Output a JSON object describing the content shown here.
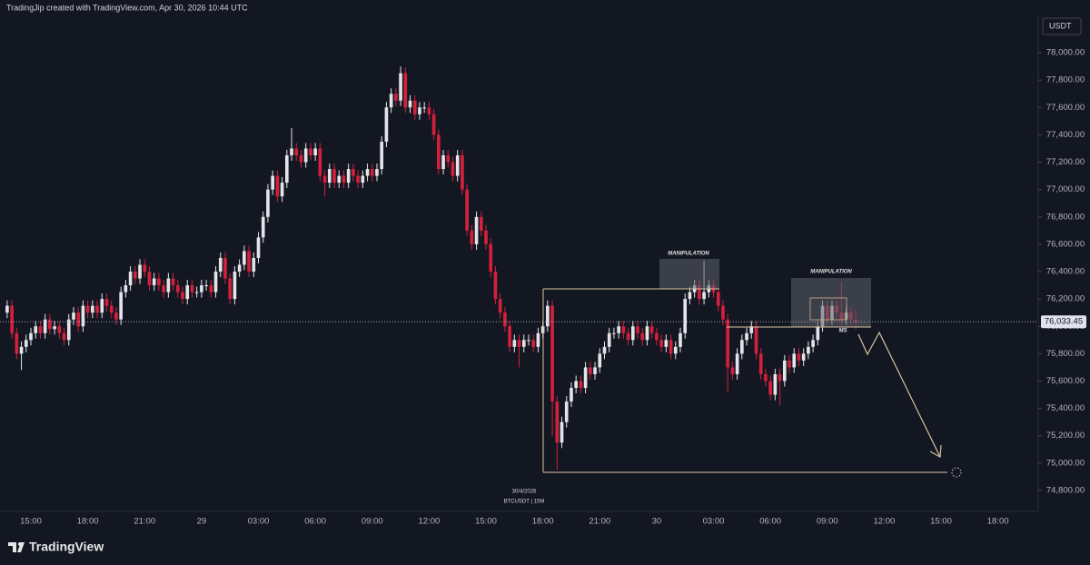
{
  "header": {
    "attribution": "TradingJip created with TradingView.com, Apr 30, 2026 10:44 UTC"
  },
  "footer": {
    "logo": "TradingView"
  },
  "chart_data": {
    "type": "candlestick",
    "currency": "USDT",
    "categories": [
      null,
      null,
      null,
      null,
      null,
      "15:00",
      null,
      null,
      null,
      null,
      null,
      null,
      null,
      null,
      null,
      null,
      null,
      "18:00",
      null,
      null,
      null,
      null,
      null,
      null,
      null,
      null,
      null,
      null,
      null,
      "21:00",
      null,
      null,
      null,
      null,
      null,
      null,
      null,
      null,
      null,
      null,
      null,
      "29",
      null,
      null,
      null,
      null,
      null,
      null,
      null,
      null,
      null,
      null,
      null,
      "03:00",
      null,
      null,
      null,
      null,
      null,
      null,
      null,
      null,
      null,
      null,
      null,
      "06:00",
      null,
      null,
      null,
      null,
      null,
      null,
      null,
      null,
      null,
      null,
      null,
      "09:00",
      null,
      null,
      null,
      null,
      null,
      null,
      null,
      null,
      null,
      null,
      null,
      "12:00",
      null,
      null,
      null,
      null,
      null,
      null,
      null,
      null,
      null,
      null,
      null,
      "15:00",
      null,
      null,
      null,
      null,
      null,
      null,
      null,
      null,
      null,
      null,
      null,
      "18:00",
      null,
      null,
      null,
      null,
      null,
      null,
      null,
      null,
      null,
      null,
      null,
      "21:00",
      null,
      null,
      null,
      null,
      null,
      null,
      null,
      null,
      null,
      null,
      null,
      "30",
      null,
      null,
      null,
      null,
      null,
      null,
      null,
      null,
      null,
      null,
      null,
      "03:00",
      null,
      null,
      null,
      null,
      null,
      null,
      null,
      null,
      null,
      null,
      null,
      "06:00",
      null,
      null,
      null,
      null,
      null,
      null,
      null,
      null,
      null,
      null,
      null,
      "09:00",
      null,
      null,
      null,
      null,
      null,
      null,
      null,
      null,
      null,
      null,
      null,
      "12:00",
      null,
      null,
      null,
      null,
      null,
      null,
      null,
      null,
      null,
      null,
      null,
      "15:00",
      null,
      null,
      null,
      null,
      null,
      null,
      null,
      null,
      null,
      null,
      null,
      "18:00",
      null,
      null,
      null,
      null,
      null,
      null,
      null,
      null
    ],
    "open": [
      76100,
      76150,
      75950,
      75800,
      75850,
      75900,
      75950,
      76000,
      75950,
      76050,
      75980,
      76000,
      75950,
      75900,
      76050,
      76100,
      76000,
      76150,
      76100,
      76150,
      76100,
      76200,
      76150,
      76100,
      76050,
      76250,
      76300,
      76400,
      76350,
      76450,
      76400,
      76300,
      76350,
      76300,
      76250,
      76350,
      76300,
      76250,
      76200,
      76300,
      76250,
      76250,
      76300,
      76300,
      76250,
      76400,
      76500,
      76350,
      76200,
      76400,
      76450,
      76550,
      76400,
      76500,
      76650,
      76800,
      77000,
      77100,
      76950,
      77050,
      77250,
      77300,
      77250,
      77200,
      77300,
      77250,
      77300,
      77100,
      77050,
      77150,
      77050,
      77100,
      77050,
      77150,
      77100,
      77050,
      77100,
      77150,
      77100,
      77150,
      77350,
      77600,
      77700,
      77650,
      77850,
      77600,
      77650,
      77550,
      77600,
      77600,
      77550,
      77400,
      77150,
      77250,
      77200,
      77100,
      77250,
      77000,
      76700,
      76600,
      76800,
      76700,
      76600,
      76400,
      76200,
      76100,
      76000,
      75850,
      75900,
      75850,
      75900,
      75900,
      75850,
      75950,
      76000,
      76150,
      75450,
      75150,
      75300,
      75450,
      75550,
      75600,
      75550,
      75700,
      75650,
      75700,
      75800,
      75850,
      75950,
      75950,
      76000,
      75950,
      75900,
      76000,
      75950,
      75900,
      76000,
      75950,
      75900,
      75850,
      75900,
      75800,
      75850,
      75950,
      76200,
      76250,
      76300,
      76200,
      76250,
      76300,
      76250,
      76150,
      76050,
      75700,
      75650,
      75800,
      75900,
      75950,
      76000,
      75800,
      75650,
      75600,
      75500,
      75650,
      75600,
      75750,
      75700,
      75800,
      75750,
      75800,
      75850,
      75900,
      76000,
      76150,
      76050,
      76150,
      76100,
      76050,
      76100,
      76050,
      null,
      null,
      null,
      null,
      null,
      null,
      null,
      null,
      null,
      null,
      null,
      null,
      null,
      null,
      null,
      null,
      null,
      null,
      null,
      null,
      null,
      null,
      null,
      null,
      null,
      null,
      null,
      null,
      null,
      null,
      null,
      null,
      null,
      null,
      null,
      null,
      null,
      null
    ],
    "high": [
      76190,
      76190,
      75990,
      75890,
      75940,
      75990,
      76040,
      76040,
      76090,
      76090,
      76040,
      76040,
      75990,
      76090,
      76140,
      76140,
      76190,
      76190,
      76190,
      76190,
      76240,
      76240,
      76190,
      76140,
      76290,
      76340,
      76440,
      76440,
      76490,
      76490,
      76440,
      76390,
      76390,
      76340,
      76390,
      76390,
      76340,
      76290,
      76340,
      76340,
      76290,
      76340,
      76340,
      76340,
      76440,
      76540,
      76540,
      76390,
      76440,
      76490,
      76590,
      76590,
      76540,
      76690,
      76840,
      77040,
      77140,
      77140,
      77090,
      77290,
      77450,
      77340,
      77290,
      77340,
      77340,
      77340,
      77340,
      77140,
      77190,
      77190,
      77140,
      77140,
      77190,
      77190,
      77140,
      77140,
      77190,
      77190,
      77190,
      77390,
      77640,
      77740,
      77740,
      77900,
      77890,
      77690,
      77690,
      77640,
      77640,
      77640,
      77590,
      77440,
      77290,
      77290,
      77240,
      77290,
      77290,
      77040,
      76740,
      76840,
      76840,
      76740,
      76640,
      76440,
      76240,
      76140,
      76040,
      75940,
      75940,
      75940,
      75940,
      75940,
      75990,
      76040,
      76190,
      76190,
      75490,
      75340,
      75490,
      75590,
      75640,
      75640,
      75740,
      75740,
      75740,
      75840,
      75890,
      75990,
      75990,
      76040,
      76040,
      75990,
      76040,
      76040,
      75990,
      76040,
      76040,
      75990,
      75940,
      75940,
      75940,
      75890,
      75990,
      76240,
      76290,
      76340,
      76340,
      76480,
      76340,
      76340,
      76290,
      76190,
      76090,
      75740,
      75840,
      75940,
      75990,
      76040,
      76040,
      75840,
      75690,
      75640,
      75690,
      75690,
      75790,
      75790,
      75840,
      75840,
      75840,
      75890,
      75940,
      76040,
      76190,
      76190,
      76190,
      76190,
      76320,
      76140,
      76140,
      76120,
      null,
      null,
      null,
      null,
      null,
      null,
      null,
      null,
      null,
      null,
      null,
      null,
      null,
      null,
      null,
      null,
      null,
      null,
      null,
      null,
      null,
      null,
      null,
      null,
      null,
      null,
      null,
      null,
      null,
      null,
      null,
      null,
      null,
      null,
      null,
      null,
      null,
      null
    ],
    "low": [
      76060,
      75910,
      75760,
      75680,
      75810,
      75860,
      75910,
      75910,
      75910,
      75940,
      75940,
      75910,
      75860,
      75860,
      76010,
      75960,
      75960,
      76060,
      76060,
      76060,
      76060,
      76110,
      76060,
      76010,
      76010,
      76210,
      76260,
      76310,
      76310,
      76360,
      76260,
      76260,
      76260,
      76210,
      76210,
      76260,
      76210,
      76160,
      76160,
      76210,
      76210,
      76210,
      76260,
      76210,
      76210,
      76360,
      76310,
      76160,
      76160,
      76360,
      76410,
      76360,
      76360,
      76460,
      76610,
      76760,
      76960,
      76910,
      76910,
      77010,
      77210,
      77210,
      77160,
      77160,
      77210,
      77210,
      77060,
      76950,
      77010,
      77010,
      77010,
      77010,
      77010,
      77060,
      77010,
      77010,
      77060,
      77060,
      77060,
      77110,
      77310,
      77560,
      77610,
      77610,
      77560,
      77560,
      77510,
      77510,
      77560,
      77510,
      77360,
      77110,
      77110,
      77160,
      77060,
      77060,
      76960,
      76660,
      76560,
      76560,
      76660,
      76560,
      76360,
      76160,
      76060,
      75960,
      75810,
      75810,
      75700,
      75810,
      75860,
      75810,
      75810,
      75910,
      75960,
      75200,
      74950,
      75110,
      75260,
      75410,
      75510,
      75510,
      75510,
      75610,
      75610,
      75660,
      75760,
      75810,
      75910,
      75910,
      75910,
      75860,
      75860,
      75910,
      75860,
      75860,
      75910,
      75860,
      75810,
      75810,
      75760,
      75760,
      75810,
      75910,
      76160,
      76210,
      76160,
      76160,
      76210,
      76210,
      76110,
      76010,
      75520,
      75610,
      75610,
      75760,
      75860,
      75910,
      75760,
      75610,
      75560,
      75460,
      75460,
      75420,
      75560,
      75660,
      75660,
      75710,
      75710,
      75760,
      75810,
      75860,
      75960,
      76010,
      76010,
      76060,
      76010,
      76010,
      76010,
      75980,
      null,
      null,
      null,
      null,
      null,
      null,
      null,
      null,
      null,
      null,
      null,
      null,
      null,
      null,
      null,
      null,
      null,
      null,
      null,
      null,
      null,
      null,
      null,
      null,
      null,
      null,
      null,
      null,
      null,
      null,
      null,
      null,
      null,
      null,
      null,
      null,
      null,
      null
    ],
    "close": [
      76150,
      75950,
      75800,
      75850,
      75900,
      75950,
      76000,
      75950,
      76050,
      75980,
      76000,
      75950,
      75900,
      76050,
      76100,
      76000,
      76150,
      76100,
      76150,
      76100,
      76200,
      76150,
      76100,
      76050,
      76250,
      76300,
      76400,
      76350,
      76450,
      76400,
      76300,
      76350,
      76300,
      76250,
      76350,
      76300,
      76250,
      76200,
      76300,
      76250,
      76250,
      76300,
      76300,
      76250,
      76400,
      76500,
      76350,
      76200,
      76400,
      76450,
      76550,
      76400,
      76500,
      76650,
      76800,
      77000,
      77100,
      76950,
      77050,
      77250,
      77300,
      77250,
      77200,
      77300,
      77250,
      77300,
      77100,
      77050,
      77150,
      77050,
      77100,
      77050,
      77150,
      77100,
      77050,
      77100,
      77150,
      77100,
      77150,
      77350,
      77600,
      77700,
      77650,
      77850,
      77600,
      77650,
      77550,
      77600,
      77600,
      77550,
      77400,
      77150,
      77250,
      77200,
      77100,
      77250,
      77000,
      76700,
      76600,
      76800,
      76700,
      76600,
      76400,
      76200,
      76100,
      76000,
      75850,
      75900,
      75850,
      75900,
      75900,
      75850,
      75950,
      76000,
      76150,
      75450,
      75150,
      75300,
      75450,
      75550,
      75600,
      75550,
      75700,
      75650,
      75700,
      75800,
      75850,
      75950,
      75950,
      76000,
      75950,
      75900,
      76000,
      75950,
      75900,
      76000,
      75950,
      75900,
      75850,
      75900,
      75800,
      75850,
      75950,
      76200,
      76250,
      76300,
      76200,
      76250,
      76300,
      76250,
      76150,
      76050,
      75700,
      75650,
      75800,
      75900,
      75950,
      76000,
      75800,
      75650,
      75600,
      75500,
      75650,
      75600,
      75750,
      75700,
      75800,
      75750,
      75800,
      75850,
      75900,
      76000,
      76150,
      76050,
      76150,
      76100,
      76050,
      76100,
      76050,
      76033.45,
      null,
      null,
      null,
      null,
      null,
      null,
      null,
      null,
      null,
      null,
      null,
      null,
      null,
      null,
      null,
      null,
      null,
      null,
      null,
      null,
      null,
      null,
      null,
      null,
      null,
      null,
      null,
      null,
      null,
      null,
      null,
      null,
      null,
      null,
      null,
      null,
      null,
      null
    ],
    "last_price_label": "76,033.45",
    "up_color": "#e3e4e8",
    "down_color": "#d3203d",
    "ylim": [
      74647,
      78266
    ],
    "yticks": [
      {
        "value": 74800,
        "label": "74,800.00"
      },
      {
        "value": 75000,
        "label": "75,000.00"
      },
      {
        "value": 75200,
        "label": "75,200.00"
      },
      {
        "value": 75400,
        "label": "75,400.00"
      },
      {
        "value": 75600,
        "label": "75,600.00"
      },
      {
        "value": 75800,
        "label": "75,800.00"
      },
      {
        "value": 76000,
        "label": "76,000.00"
      },
      {
        "value": 76200,
        "label": "76,200.00"
      },
      {
        "value": 76400,
        "label": "76,400.00"
      },
      {
        "value": 76600,
        "label": "76,600.00"
      },
      {
        "value": 76800,
        "label": "76,800.00"
      },
      {
        "value": 77000,
        "label": "77,000.00"
      },
      {
        "value": 77200,
        "label": "77,200.00"
      },
      {
        "value": 77400,
        "label": "77,400.00"
      },
      {
        "value": 77600,
        "label": "77,600.00"
      },
      {
        "value": 77800,
        "label": "77,800.00"
      },
      {
        "value": 78000,
        "label": "78,000.00"
      }
    ],
    "annotations": [
      "MANIPULATION",
      "MANIPULATION",
      "MS",
      "30/4/2026",
      "BTCUSDT | 15M"
    ]
  }
}
